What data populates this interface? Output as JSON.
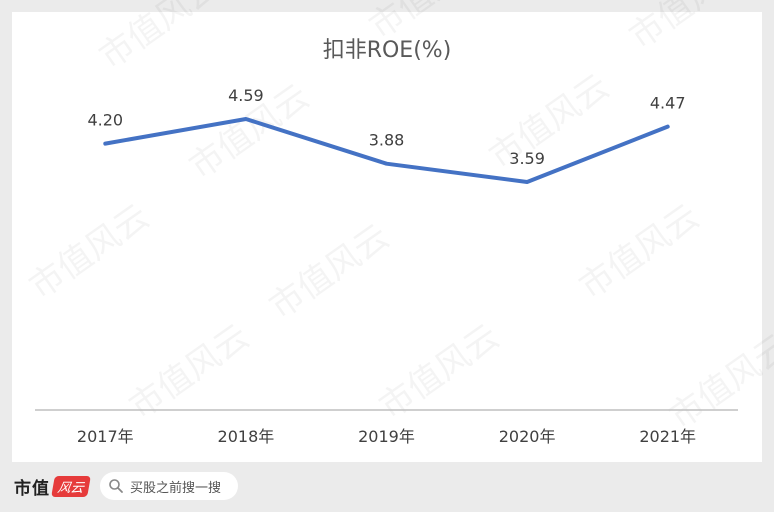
{
  "watermark_text": "市值风云",
  "footer": {
    "brand": "市值",
    "brand_badge": "风云",
    "search_text": "买股之前搜一搜"
  },
  "colors": {
    "line": "#4472c4",
    "axis": "#bfbfbf",
    "text": "#404040",
    "title": "#595959"
  },
  "chart_data": {
    "type": "line",
    "title": "扣非ROE(%)",
    "categories": [
      "2017年",
      "2018年",
      "2019年",
      "2020年",
      "2021年"
    ],
    "series": [
      {
        "values": [
          4.2,
          4.59,
          3.88,
          3.59,
          4.47
        ]
      }
    ],
    "data_labels": [
      "4.20",
      "4.59",
      "3.88",
      "3.59",
      "4.47"
    ],
    "ylim": [
      0,
      5
    ],
    "grid": false,
    "legend": "none"
  }
}
